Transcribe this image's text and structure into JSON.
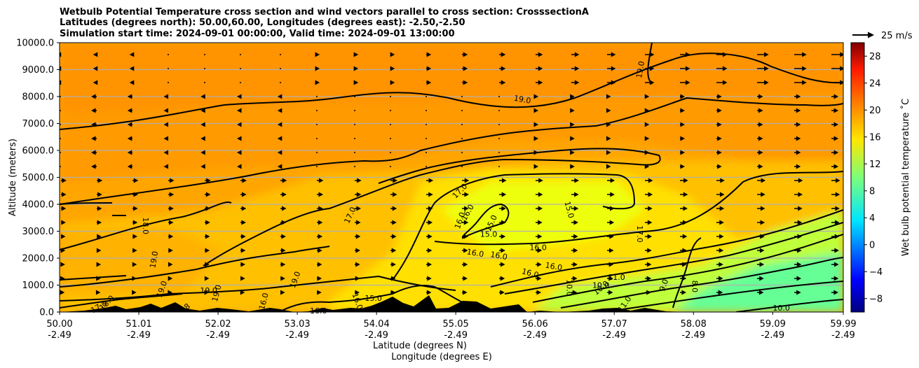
{
  "title_lines": [
    "Wetbulb Potential Temperature cross section and wind vectors parallel to cross section: CrosssectionA",
    "Latitudes (degrees north): 50.00,60.00, Longitudes (degrees east): -2.50,-2.50",
    "Simulation start time: 2024-09-01 00:00:00, Valid time: 2024-09-01 13:00:00"
  ],
  "quiver_key_label": "25 m/s",
  "chart_data": {
    "type": "heatmap",
    "subtype": "filled contour cross-section with contour lines, quiver wind vectors and terrain",
    "ylabel": "Altitude (meters)",
    "xlabel_lines": [
      "Latitude (degrees N)",
      "Longitude (degrees E)"
    ],
    "ylim": [
      0,
      10000
    ],
    "y_ticks": [
      "0.0",
      "1000.0",
      "2000.0",
      "3000.0",
      "4000.0",
      "5000.0",
      "6000.0",
      "7000.0",
      "8000.0",
      "9000.0",
      "10000.0"
    ],
    "x_tick_lat": [
      "50.00",
      "51.01",
      "52.02",
      "53.03",
      "54.04",
      "55.05",
      "56.06",
      "57.07",
      "58.08",
      "59.09",
      "59.99"
    ],
    "x_tick_lon": [
      "-2.49",
      "-2.49",
      "-2.49",
      "-2.49",
      "-2.49",
      "-2.49",
      "-2.49",
      "-2.49",
      "-2.49",
      "-2.49",
      "-2.49"
    ],
    "xlim": [
      50.0,
      59.99
    ],
    "grid": "horizontal",
    "colormap": "jet",
    "colorbar": {
      "label": "Wet bulb potential temperature ˚C",
      "range": [
        -10,
        30
      ],
      "ticks": [
        "−8",
        "−4",
        "0",
        "4",
        "8",
        "12",
        "16",
        "20",
        "24",
        "28"
      ]
    },
    "contour_labels": [
      {
        "lat": 51.1,
        "alt": 3200,
        "text": "18.0",
        "rot": 90
      },
      {
        "lat": 51.2,
        "alt": 1950,
        "text": "19.0",
        "rot": -80
      },
      {
        "lat": 51.3,
        "alt": 850,
        "text": "19.0",
        "rot": -70
      },
      {
        "lat": 51.9,
        "alt": 800,
        "text": "19.0",
        "rot": 0
      },
      {
        "lat": 53.0,
        "alt": 1200,
        "text": "19.0",
        "rot": -70
      },
      {
        "lat": 53.7,
        "alt": 3600,
        "text": "17.0",
        "rot": -65
      },
      {
        "lat": 55.9,
        "alt": 7900,
        "text": "19.0",
        "rot": 10
      },
      {
        "lat": 55.1,
        "alt": 4500,
        "text": "17.0",
        "rot": -45
      },
      {
        "lat": 55.2,
        "alt": 3700,
        "text": "16.0",
        "rot": -60
      },
      {
        "lat": 55.1,
        "alt": 3400,
        "text": "16.0",
        "rot": -70
      },
      {
        "lat": 55.5,
        "alt": 3300,
        "text": "15.0",
        "rot": -65
      },
      {
        "lat": 55.47,
        "alt": 2900,
        "text": "15.0",
        "rot": 0
      },
      {
        "lat": 56.5,
        "alt": 3800,
        "text": "15.0",
        "rot": 75
      },
      {
        "lat": 55.3,
        "alt": 2200,
        "text": "16.0",
        "rot": 10
      },
      {
        "lat": 55.6,
        "alt": 2100,
        "text": "16.0",
        "rot": 10
      },
      {
        "lat": 56.1,
        "alt": 2400,
        "text": "16.0",
        "rot": 0
      },
      {
        "lat": 57.4,
        "alt": 2900,
        "text": "17.0",
        "rot": 90
      },
      {
        "lat": 57.4,
        "alt": 9000,
        "text": "19.0",
        "rot": -80
      },
      {
        "lat": 56.0,
        "alt": 1450,
        "text": "16.0",
        "rot": 15
      },
      {
        "lat": 56.3,
        "alt": 1700,
        "text": "16.0",
        "rot": 10
      },
      {
        "lat": 56.5,
        "alt": 900,
        "text": "10.0",
        "rot": 90
      },
      {
        "lat": 56.9,
        "alt": 1000,
        "text": "10.0",
        "rot": 0
      },
      {
        "lat": 56.9,
        "alt": 900,
        "text": "10.0",
        "rot": -40
      },
      {
        "lat": 57.1,
        "alt": 1300,
        "text": "11.0",
        "rot": 0
      },
      {
        "lat": 57.7,
        "alt": 1000,
        "text": "9.0",
        "rot": -70
      },
      {
        "lat": 58.1,
        "alt": 950,
        "text": "8.0",
        "rot": 90
      },
      {
        "lat": 57.2,
        "alt": 300,
        "text": "11.0",
        "rot": -55
      },
      {
        "lat": 59.2,
        "alt": 150,
        "text": "10.0",
        "rot": 0
      },
      {
        "lat": 54.0,
        "alt": 520,
        "text": "15.0",
        "rot": 0
      },
      {
        "lat": 53.3,
        "alt": 50,
        "text": "16.0",
        "rot": 0
      },
      {
        "lat": 53.8,
        "alt": 400,
        "text": "16.0",
        "rot": 70
      },
      {
        "lat": 52.0,
        "alt": 700,
        "text": "19.0",
        "rot": -75
      },
      {
        "lat": 50.5,
        "alt": 200,
        "text": "17.0",
        "rot": -30
      },
      {
        "lat": 50.6,
        "alt": 350,
        "text": "18.0",
        "rot": -45
      },
      {
        "lat": 51.6,
        "alt": 150,
        "text": "18",
        "rot": -40
      },
      {
        "lat": 52.6,
        "alt": 400,
        "text": "16.0",
        "rot": -75
      }
    ]
  }
}
